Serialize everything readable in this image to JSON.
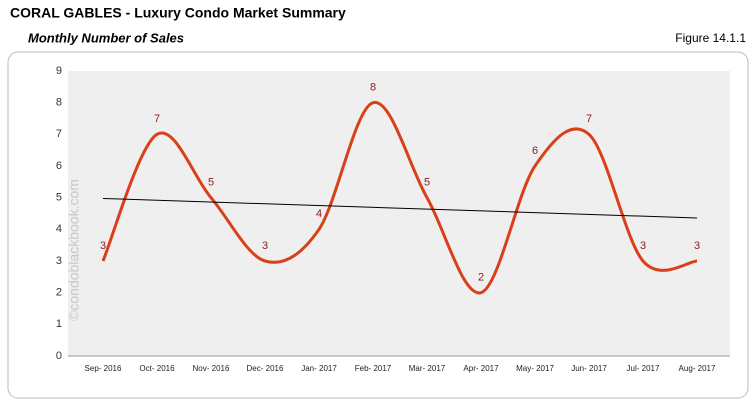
{
  "chart_data": {
    "type": "line",
    "title": "CORAL GABLES - Luxury Condo Market Summary",
    "subtitle": "Monthly Number of Sales",
    "figure": "Figure 14.1.1",
    "watermark": "©condoblackbook.com",
    "categories": [
      "Sep- 2016",
      "Oct- 2016",
      "Nov- 2016",
      "Dec- 2016",
      "Jan- 2017",
      "Feb- 2017",
      "Mar- 2017",
      "Apr- 2017",
      "May- 2017",
      "Jun- 2017",
      "Jul- 2017",
      "Aug- 2017"
    ],
    "values": [
      3,
      7,
      5,
      3,
      4,
      8,
      5,
      2,
      6,
      7,
      3,
      3
    ],
    "color": "#d9401a",
    "label_color": "#8b1a1a",
    "trendline": true,
    "ylim": [
      0,
      9
    ],
    "yticks": [
      0,
      1,
      2,
      3,
      4,
      5,
      6,
      7,
      8,
      9
    ]
  }
}
